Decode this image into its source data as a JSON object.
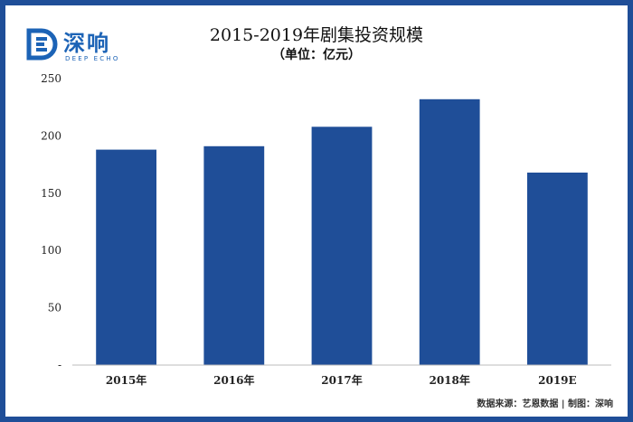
{
  "logo": {
    "brand": "深响",
    "brand_en": "DEEP ECHO",
    "brand_color": "#1c63b6"
  },
  "chart_data": {
    "type": "bar",
    "title": "2015-2019年剧集投资规模",
    "subtitle": "（单位：亿元）",
    "categories": [
      "2015年",
      "2016年",
      "2017年",
      "2018年",
      "2019E"
    ],
    "values": [
      188,
      191,
      208,
      232,
      168
    ],
    "ylim": [
      0,
      250
    ],
    "yticks": [
      {
        "value": 0,
        "label": "-"
      },
      {
        "value": 50,
        "label": "50"
      },
      {
        "value": 100,
        "label": "100"
      },
      {
        "value": 150,
        "label": "150"
      },
      {
        "value": 200,
        "label": "200"
      },
      {
        "value": 250,
        "label": "250"
      }
    ],
    "grid": false,
    "bar_color": "#1f4e98"
  },
  "source": "数据来源：艺恩数据 | 制图：深响"
}
